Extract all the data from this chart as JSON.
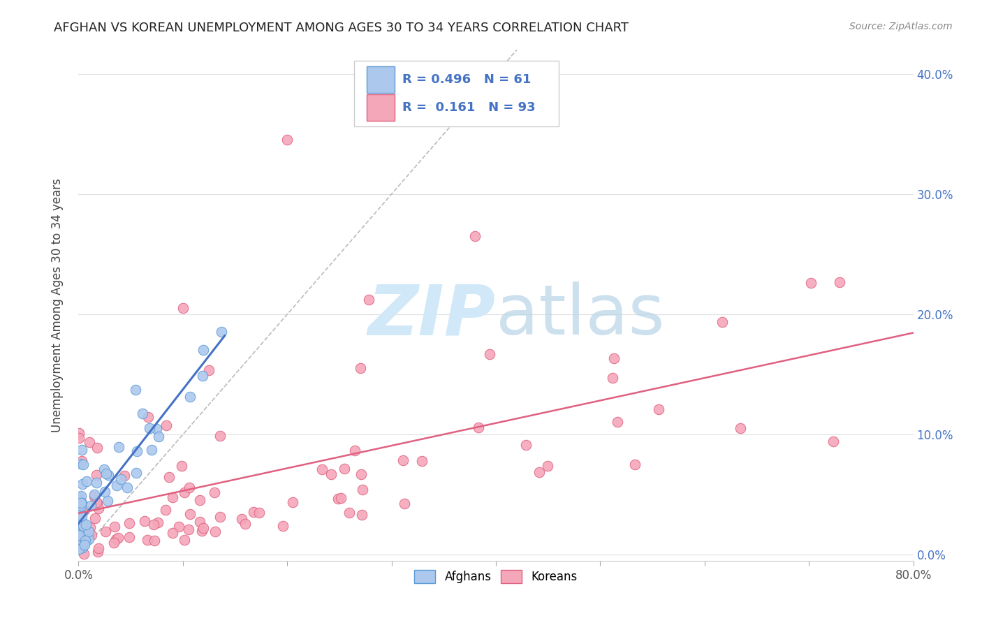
{
  "title": "AFGHAN VS KOREAN UNEMPLOYMENT AMONG AGES 30 TO 34 YEARS CORRELATION CHART",
  "source": "Source: ZipAtlas.com",
  "ylabel": "Unemployment Among Ages 30 to 34 years",
  "xlim": [
    0.0,
    0.8
  ],
  "ylim": [
    -0.005,
    0.42
  ],
  "afghan_R": 0.496,
  "afghan_N": 61,
  "korean_R": 0.161,
  "korean_N": 93,
  "afghan_color": "#adc8ed",
  "afghan_edge_color": "#5b9bd5",
  "korean_color": "#f4a7b9",
  "korean_edge_color": "#e06080",
  "trend_afghan_color": "#4472c4",
  "trend_korean_color": "#e06080",
  "diagonal_color": "#bbbbbb",
  "watermark_color": "#d0e8f8",
  "grid_color": "#e0e0e0",
  "ytick_vals": [
    0.0,
    0.1,
    0.2,
    0.3,
    0.4
  ],
  "ytick_labels": [
    "0.0%",
    "10.0%",
    "20.0%",
    "30.0%",
    "40.0%"
  ],
  "xtick_vals": [
    0.0,
    0.1,
    0.2,
    0.3,
    0.4,
    0.5,
    0.6,
    0.7,
    0.8
  ],
  "title_color": "#222222",
  "source_color": "#888888",
  "ylabel_color": "#444444",
  "right_tick_color": "#4472c4"
}
